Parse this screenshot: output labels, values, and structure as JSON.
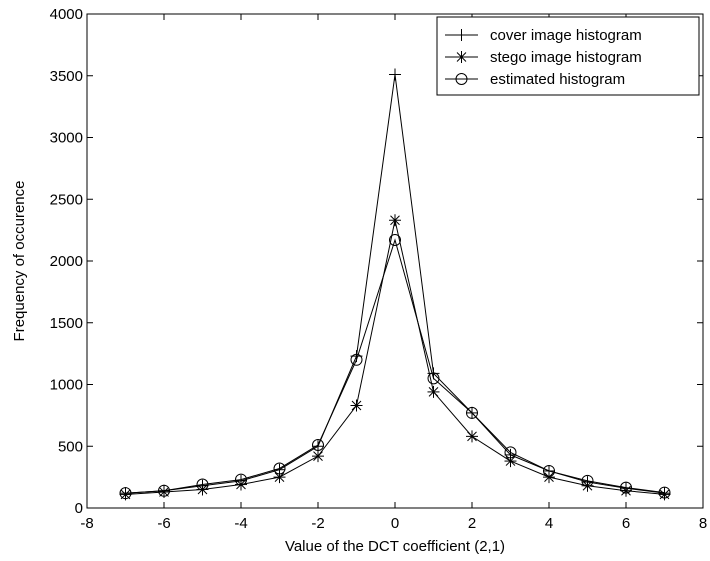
{
  "chart_data": {
    "type": "line",
    "title": "",
    "xlabel": "Value of the DCT coefficient (2,1)",
    "ylabel": "Frequency of occurence",
    "xlim": [
      -8,
      8
    ],
    "ylim": [
      0,
      4000
    ],
    "xticks": [
      -8,
      -6,
      -4,
      -2,
      0,
      2,
      4,
      6,
      8
    ],
    "yticks": [
      0,
      500,
      1000,
      1500,
      2000,
      2500,
      3000,
      3500,
      4000
    ],
    "grid": false,
    "legend_position": "top-right",
    "x": [
      -7,
      -6,
      -5,
      -4,
      -3,
      -2,
      -1,
      0,
      1,
      2,
      3,
      4,
      5,
      6,
      7
    ],
    "series": [
      {
        "name": "cover image histogram",
        "marker": "plus",
        "values": [
          120,
          140,
          180,
          220,
          310,
          500,
          1230,
          3510,
          1090,
          770,
          430,
          300,
          210,
          160,
          120
        ]
      },
      {
        "name": "stego image histogram",
        "marker": "asterisk",
        "values": [
          110,
          130,
          150,
          190,
          250,
          420,
          830,
          2330,
          940,
          580,
          380,
          250,
          180,
          140,
          110
        ]
      },
      {
        "name": "estimated histogram",
        "marker": "circle",
        "values": [
          120,
          140,
          190,
          230,
          320,
          510,
          1200,
          2170,
          1050,
          770,
          450,
          300,
          220,
          165,
          125
        ]
      }
    ],
    "colors": {
      "line": "#000000",
      "background": "#ffffff",
      "axes": "#000000"
    }
  }
}
